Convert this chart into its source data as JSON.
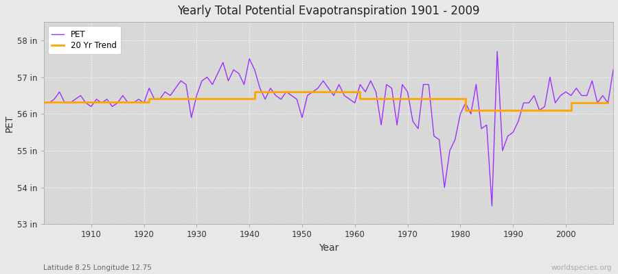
{
  "title": "Yearly Total Potential Evapotranspiration 1901 - 2009",
  "xlabel": "Year",
  "ylabel": "PET",
  "subtitle": "Latitude 8.25 Longitude 12.75",
  "watermark": "worldspecies.org",
  "bg_color": "#e8e8e8",
  "plot_bg_color": "#d8d8d8",
  "pet_color": "#9B30FF",
  "trend_color": "#FFA500",
  "ylim": [
    53.0,
    58.5
  ],
  "yticks": [
    53,
    54,
    55,
    56,
    57,
    58
  ],
  "ytick_labels": [
    "53 in",
    "54 in",
    "55 in",
    "56 in",
    "57 in",
    "58 in"
  ],
  "years": [
    1901,
    1902,
    1903,
    1904,
    1905,
    1906,
    1907,
    1908,
    1909,
    1910,
    1911,
    1912,
    1913,
    1914,
    1915,
    1916,
    1917,
    1918,
    1919,
    1920,
    1921,
    1922,
    1923,
    1924,
    1925,
    1926,
    1927,
    1928,
    1929,
    1930,
    1931,
    1932,
    1933,
    1934,
    1935,
    1936,
    1937,
    1938,
    1939,
    1940,
    1941,
    1942,
    1943,
    1944,
    1945,
    1946,
    1947,
    1948,
    1949,
    1950,
    1951,
    1952,
    1953,
    1954,
    1955,
    1956,
    1957,
    1958,
    1959,
    1960,
    1961,
    1962,
    1963,
    1964,
    1965,
    1966,
    1967,
    1968,
    1969,
    1970,
    1971,
    1972,
    1973,
    1974,
    1975,
    1976,
    1977,
    1978,
    1979,
    1980,
    1981,
    1982,
    1983,
    1984,
    1985,
    1986,
    1987,
    1988,
    1989,
    1990,
    1991,
    1992,
    1993,
    1994,
    1995,
    1996,
    1997,
    1998,
    1999,
    2000,
    2001,
    2002,
    2003,
    2004,
    2005,
    2006,
    2007,
    2008,
    2009
  ],
  "pet_values": [
    56.3,
    56.3,
    56.4,
    56.6,
    56.3,
    56.3,
    56.4,
    56.5,
    56.3,
    56.2,
    56.4,
    56.3,
    56.4,
    56.2,
    56.3,
    56.5,
    56.3,
    56.3,
    56.4,
    56.3,
    56.7,
    56.4,
    56.4,
    56.6,
    56.5,
    56.7,
    56.9,
    56.8,
    55.9,
    56.5,
    56.9,
    57.0,
    56.8,
    57.1,
    57.4,
    56.9,
    57.2,
    57.1,
    56.8,
    57.5,
    57.2,
    56.7,
    56.4,
    56.7,
    56.5,
    56.4,
    56.6,
    56.5,
    56.4,
    55.9,
    56.5,
    56.6,
    56.7,
    56.9,
    56.7,
    56.5,
    56.8,
    56.5,
    56.4,
    56.3,
    56.8,
    56.6,
    56.9,
    56.6,
    55.7,
    56.8,
    56.7,
    55.7,
    56.8,
    56.6,
    55.8,
    55.6,
    56.8,
    56.8,
    55.4,
    55.3,
    54.0,
    55.0,
    55.3,
    56.0,
    56.3,
    56.0,
    56.8,
    55.6,
    55.7,
    53.5,
    57.7,
    55.0,
    55.4,
    55.5,
    55.8,
    56.3,
    56.3,
    56.5,
    56.1,
    56.2,
    57.0,
    56.3,
    56.5,
    56.6,
    56.5,
    56.7,
    56.5,
    56.5,
    56.9,
    56.3,
    56.5,
    56.3,
    57.2
  ],
  "trend_values": [
    56.32,
    56.32,
    56.32,
    56.32,
    56.32,
    56.32,
    56.32,
    56.32,
    56.32,
    56.32,
    56.32,
    56.32,
    56.32,
    56.32,
    56.32,
    56.32,
    56.32,
    56.32,
    56.32,
    56.32,
    56.42,
    56.42,
    56.42,
    56.42,
    56.42,
    56.42,
    56.42,
    56.42,
    56.42,
    56.42,
    56.42,
    56.42,
    56.42,
    56.42,
    56.42,
    56.42,
    56.42,
    56.42,
    56.42,
    56.42,
    56.6,
    56.6,
    56.6,
    56.6,
    56.6,
    56.6,
    56.6,
    56.6,
    56.6,
    56.6,
    56.6,
    56.6,
    56.6,
    56.6,
    56.6,
    56.6,
    56.6,
    56.6,
    56.6,
    56.6,
    56.42,
    56.42,
    56.42,
    56.42,
    56.42,
    56.42,
    56.42,
    56.42,
    56.42,
    56.42,
    56.42,
    56.42,
    56.42,
    56.42,
    56.42,
    56.42,
    56.42,
    56.42,
    56.42,
    56.42,
    56.1,
    56.1,
    56.1,
    56.1,
    56.1,
    56.1,
    56.1,
    56.1,
    56.1,
    56.1,
    56.1,
    56.1,
    56.1,
    56.1,
    56.1,
    56.1,
    56.1,
    56.1,
    56.1,
    56.1,
    56.3,
    56.3,
    56.3,
    56.3,
    56.3,
    56.3,
    56.3,
    56.3,
    null
  ]
}
